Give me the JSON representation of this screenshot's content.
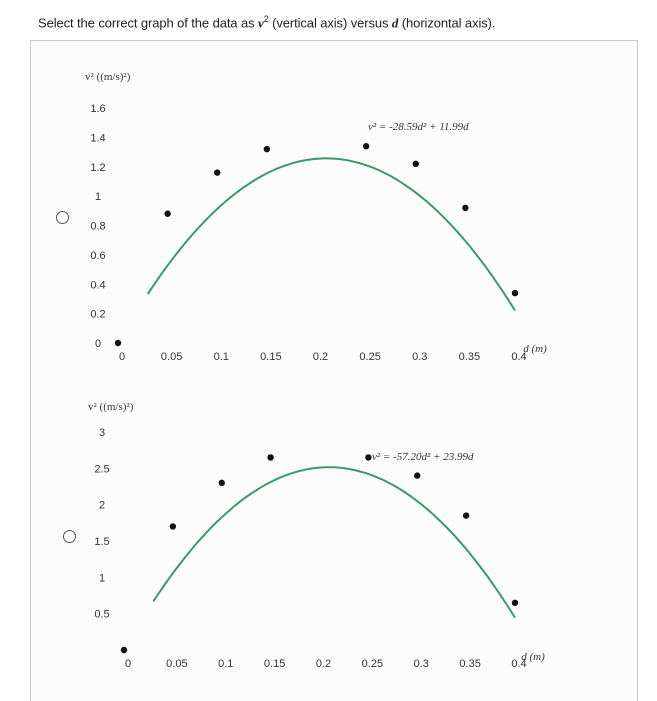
{
  "question": {
    "prefix": "Select the correct graph of the data as ",
    "var_v": "v",
    "sup": "2",
    "middle": " (vertical axis) versus ",
    "var_d": "d",
    "suffix": " (horizontal axis)."
  },
  "colors": {
    "curve": "#3a9a6a",
    "point": "#111111",
    "text": "#333333"
  },
  "chart_data": [
    {
      "type": "scatter",
      "ylabel": "v² ((m/s)²)",
      "xlabel": "d (m)",
      "equation": "v² = -28.59d² + 11.99d",
      "xlim": [
        0,
        0.4
      ],
      "ylim": [
        0,
        1.6
      ],
      "x_ticks": [
        0,
        0.05,
        0.1,
        0.15,
        0.2,
        0.25,
        0.3,
        0.35,
        0.4
      ],
      "x_tick_labels": [
        "0",
        "0.05",
        "0.1",
        "0.15",
        "0.2",
        "0.25",
        "0.3",
        "0.35",
        "0.4"
      ],
      "y_ticks": [
        0,
        0.2,
        0.4,
        0.6,
        0.8,
        1,
        1.2,
        1.4,
        1.6
      ],
      "y_tick_labels": [
        "0",
        "0.2",
        "0.4",
        "0.6",
        "0.8",
        "1",
        "1.2",
        "1.4",
        "1.6"
      ],
      "points": [
        {
          "x": 0,
          "y": 0
        },
        {
          "x": 0.05,
          "y": 0.88
        },
        {
          "x": 0.1,
          "y": 1.16
        },
        {
          "x": 0.15,
          "y": 1.32
        },
        {
          "x": 0.25,
          "y": 1.34
        },
        {
          "x": 0.3,
          "y": 1.22
        },
        {
          "x": 0.35,
          "y": 0.92
        },
        {
          "x": 0.4,
          "y": 0.34
        }
      ],
      "fit": {
        "a": -28.59,
        "b": 11.99,
        "x_from": 0.03,
        "x_to": 0.4
      }
    },
    {
      "type": "scatter",
      "ylabel": "v² ((m/s)²)",
      "xlabel": "d (m)",
      "equation": "v² = -57.20d² + 23.99d",
      "xlim": [
        0,
        0.4
      ],
      "ylim": [
        0,
        3
      ],
      "x_ticks": [
        0,
        0.05,
        0.1,
        0.15,
        0.2,
        0.25,
        0.3,
        0.35,
        0.4
      ],
      "x_tick_labels": [
        "0",
        "0.05",
        "0.1",
        "0.15",
        "0.2",
        "0.25",
        "0.3",
        "0.35",
        "0.4"
      ],
      "y_ticks": [
        0.5,
        1,
        1.5,
        2,
        2.5,
        3
      ],
      "y_tick_labels": [
        "0.5",
        "1",
        "1.5",
        "2",
        "2.5",
        "3"
      ],
      "points": [
        {
          "x": 0,
          "y": 0
        },
        {
          "x": 0.05,
          "y": 1.7
        },
        {
          "x": 0.1,
          "y": 2.3
        },
        {
          "x": 0.15,
          "y": 2.65
        },
        {
          "x": 0.25,
          "y": 2.65
        },
        {
          "x": 0.3,
          "y": 2.4
        },
        {
          "x": 0.35,
          "y": 1.85
        },
        {
          "x": 0.4,
          "y": 0.65
        }
      ],
      "fit": {
        "a": -57.2,
        "b": 23.99,
        "x_from": 0.03,
        "x_to": 0.4
      }
    }
  ]
}
